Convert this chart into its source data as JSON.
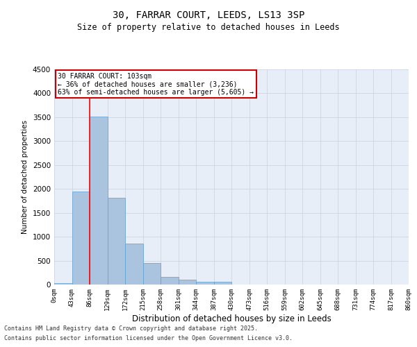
{
  "title_line1": "30, FARRAR COURT, LEEDS, LS13 3SP",
  "title_line2": "Size of property relative to detached houses in Leeds",
  "xlabel": "Distribution of detached houses by size in Leeds",
  "ylabel": "Number of detached properties",
  "bar_values": [
    35,
    1950,
    3520,
    1820,
    860,
    450,
    155,
    100,
    60,
    55,
    0,
    0,
    0,
    0,
    0,
    0,
    0,
    0,
    0,
    0
  ],
  "x_labels": [
    "0sqm",
    "43sqm",
    "86sqm",
    "129sqm",
    "172sqm",
    "215sqm",
    "258sqm",
    "301sqm",
    "344sqm",
    "387sqm",
    "430sqm",
    "473sqm",
    "516sqm",
    "559sqm",
    "602sqm",
    "645sqm",
    "688sqm",
    "731sqm",
    "774sqm",
    "817sqm",
    "860sqm"
  ],
  "ylim": [
    0,
    4500
  ],
  "yticks": [
    0,
    500,
    1000,
    1500,
    2000,
    2500,
    3000,
    3500,
    4000,
    4500
  ],
  "bar_color": "#aac4e0",
  "bar_edge_color": "#5a9fd4",
  "red_line_x": 2,
  "annotation_text": "30 FARRAR COURT: 103sqm\n← 36% of detached houses are smaller (3,236)\n63% of semi-detached houses are larger (5,605) →",
  "annotation_box_color": "#ffffff",
  "annotation_box_edge": "#cc0000",
  "background_color": "#e8eef8",
  "grid_color": "#c8d0e0",
  "footer_line1": "Contains HM Land Registry data © Crown copyright and database right 2025.",
  "footer_line2": "Contains public sector information licensed under the Open Government Licence v3.0."
}
